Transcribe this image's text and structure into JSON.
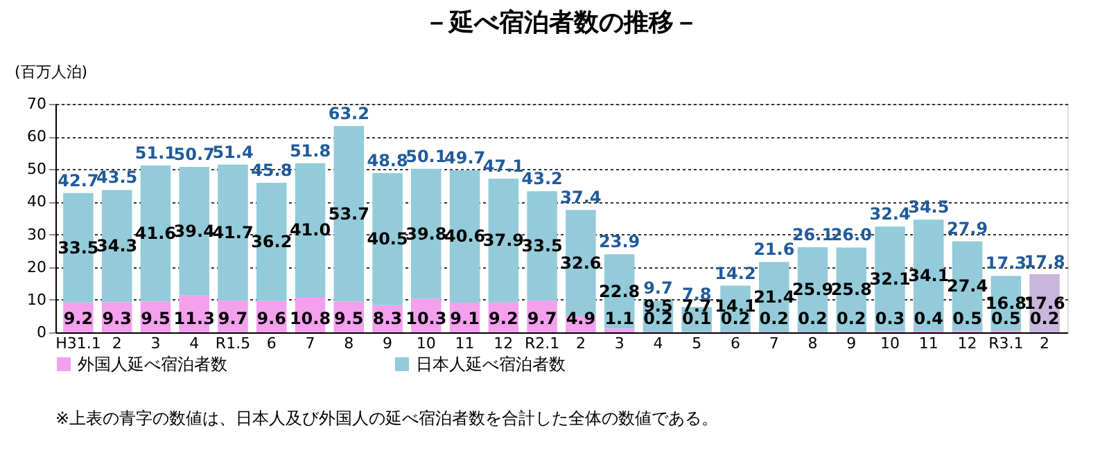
{
  "chart_data": {
    "type": "bar",
    "stacked": true,
    "title": "－延べ宿泊者数の推移－",
    "ylabel": "(百万人泊)",
    "categories": [
      "H31.1",
      "2",
      "3",
      "4",
      "R1.5",
      "6",
      "7",
      "8",
      "9",
      "10",
      "11",
      "12",
      "R2.1",
      "2",
      "3",
      "4",
      "5",
      "6",
      "7",
      "8",
      "9",
      "10",
      "11",
      "12",
      "R3.1",
      "2"
    ],
    "series": [
      {
        "name": "外国人延べ宿泊者数",
        "color": "#f4a0ee",
        "colors": [
          "#f4a0ee",
          "#f4a0ee",
          "#f4a0ee",
          "#f4a0ee",
          "#f4a0ee",
          "#f4a0ee",
          "#f4a0ee",
          "#f4a0ee",
          "#f4a0ee",
          "#f4a0ee",
          "#f4a0ee",
          "#f4a0ee",
          "#f4a0ee",
          "#f4a0ee",
          "#f4a0ee",
          "#f4a0ee",
          "#f4a0ee",
          "#f4a0ee",
          "#f4a0ee",
          "#f4a0ee",
          "#f4a0ee",
          "#f4a0ee",
          "#f4a0ee",
          "#f4a0ee",
          "#f4a0ee",
          "#c9b6dc"
        ],
        "values": [
          9.2,
          9.3,
          9.5,
          11.3,
          9.7,
          9.6,
          10.8,
          9.5,
          8.3,
          10.3,
          9.1,
          9.2,
          9.7,
          4.9,
          1.1,
          0.2,
          0.1,
          0.2,
          0.2,
          0.2,
          0.2,
          0.3,
          0.4,
          0.5,
          0.5,
          0.2
        ]
      },
      {
        "name": "日本人延べ宿泊者数",
        "color": "#93cbda",
        "colors": [
          "#93cbda",
          "#93cbda",
          "#93cbda",
          "#93cbda",
          "#93cbda",
          "#93cbda",
          "#93cbda",
          "#93cbda",
          "#93cbda",
          "#93cbda",
          "#93cbda",
          "#93cbda",
          "#93cbda",
          "#93cbda",
          "#93cbda",
          "#93cbda",
          "#93cbda",
          "#93cbda",
          "#93cbda",
          "#93cbda",
          "#93cbda",
          "#93cbda",
          "#93cbda",
          "#93cbda",
          "#93cbda",
          "#c9b6dc"
        ],
        "value_labels": [
          "33.5",
          "34.3",
          "41.6",
          "39.4",
          "41.7",
          "36.2",
          "41.0",
          "53.7",
          "40.5",
          "39.8",
          "40.6",
          "37.9",
          "33.5",
          "32.6",
          "22.8",
          "9.5",
          "7.7",
          "14.1",
          "21.4",
          "25.9",
          "25.8",
          "32.1",
          "34.1",
          "27.4",
          "16.8",
          "17.6"
        ],
        "values": [
          33.5,
          34.3,
          41.6,
          39.4,
          41.7,
          36.2,
          41.0,
          53.7,
          40.5,
          39.8,
          40.6,
          37.9,
          33.5,
          32.6,
          22.8,
          9.5,
          7.7,
          14.1,
          21.4,
          25.9,
          25.8,
          32.1,
          34.1,
          27.4,
          16.8,
          17.6
        ]
      }
    ],
    "totals": [
      "42.7",
      "43.5",
      "51.1",
      "50.7",
      "51.4",
      "45.8",
      "51.8",
      "63.2",
      "48.8",
      "50.1",
      "49.7",
      "47.1",
      "43.2",
      "37.4",
      "23.9",
      "9.7",
      "7.8",
      "14.2",
      "21.6",
      "26.1",
      "26.0",
      "32.4",
      "34.5",
      "27.9",
      "17.3",
      "17.8"
    ],
    "data_labels": true,
    "ylim": [
      0,
      70
    ],
    "yticks": [
      0,
      10,
      20,
      30,
      40,
      50,
      60,
      70
    ],
    "grid": "y",
    "legend": "bottom",
    "annotations": [
      "※上表の青字の数値は、日本人及び外国人の延べ宿泊者数を合計した全体の数値である。"
    ]
  }
}
